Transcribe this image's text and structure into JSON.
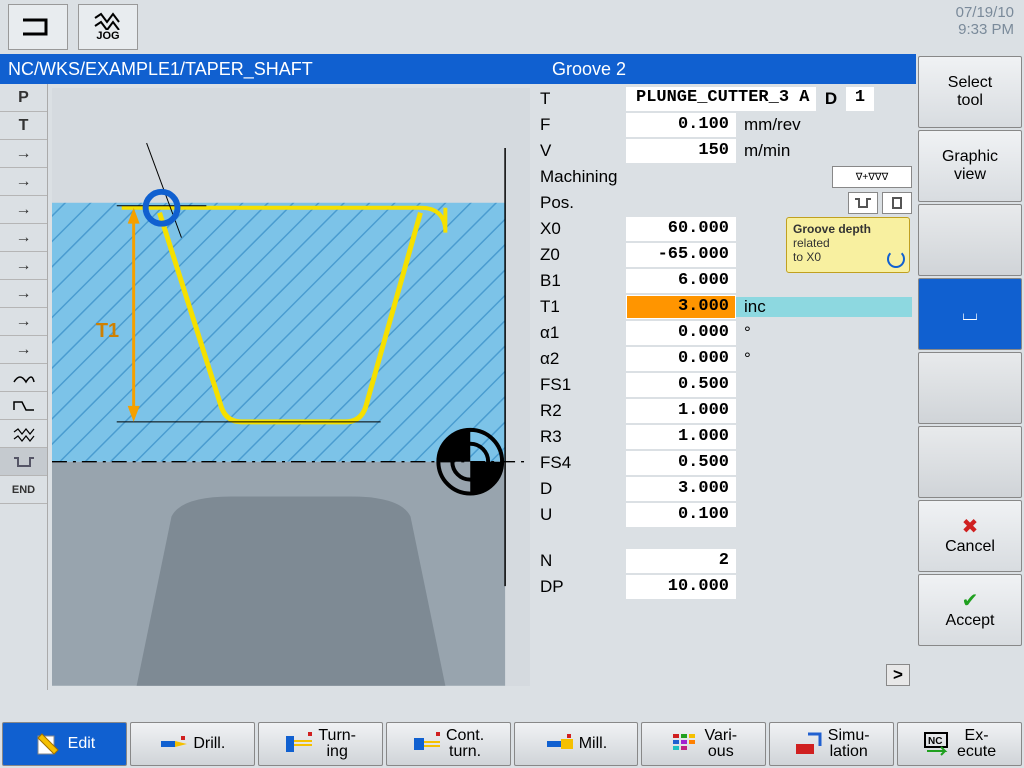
{
  "header": {
    "date": "07/19/10",
    "time": "9:33 PM",
    "jog_label": "JOG"
  },
  "path": {
    "program_path": "NC/WKS/EXAMPLE1/TAPER_SHAFT",
    "cycle_name": "Groove 2"
  },
  "left_rail": {
    "items": [
      "P",
      "T",
      "→",
      "→",
      "→",
      "→",
      "→",
      "→",
      "→",
      "→",
      "〰",
      "⌐",
      "≋",
      "⌙",
      "END"
    ]
  },
  "params": {
    "tool": {
      "label": "T",
      "value": "PLUNGE_CUTTER_3 A",
      "d_label": "D",
      "d_value": "1"
    },
    "feed": {
      "label": "F",
      "value": "0.100",
      "unit": "mm/rev"
    },
    "speed": {
      "label": "V",
      "value": "150",
      "unit": "m/min"
    },
    "machining": {
      "label": "Machining",
      "mode": "∇+∇∇∇"
    },
    "pos": {
      "label": "Pos."
    },
    "X0": {
      "label": "X0",
      "value": "60.000"
    },
    "Z0": {
      "label": "Z0",
      "value": "-65.000"
    },
    "B1": {
      "label": "B1",
      "value": "6.000"
    },
    "T1": {
      "label": "T1",
      "value": "3.000",
      "unit": "inc"
    },
    "a1": {
      "label": "α1",
      "value": "0.000",
      "unit": "°"
    },
    "a2": {
      "label": "α2",
      "value": "0.000",
      "unit": "°"
    },
    "FS1": {
      "label": "FS1",
      "value": "0.500"
    },
    "R2": {
      "label": "R2",
      "value": "1.000"
    },
    "R3": {
      "label": "R3",
      "value": "1.000"
    },
    "FS4": {
      "label": "FS4",
      "value": "0.500"
    },
    "D": {
      "label": "D",
      "value": "3.000"
    },
    "U": {
      "label": "U",
      "value": "0.100"
    },
    "N": {
      "label": "N",
      "value": "2"
    },
    "DP": {
      "label": "DP",
      "value": "10.000"
    }
  },
  "tooltip": {
    "line1": "Groove depth",
    "line2": "related",
    "line3": "to X0"
  },
  "right_keys": [
    {
      "label": "Select\ntool",
      "name": "select-tool"
    },
    {
      "label": "Graphic\nview",
      "name": "graphic-view"
    },
    {
      "label": "",
      "name": "empty-1",
      "empty": true
    },
    {
      "label": "",
      "name": "groove-type",
      "active": true,
      "icon": "⌴"
    },
    {
      "label": "",
      "name": "empty-2",
      "empty": true
    },
    {
      "label": "",
      "name": "empty-3",
      "empty": true
    },
    {
      "label": "Cancel",
      "name": "cancel",
      "icon": "✖",
      "icon_color": "#d02020"
    },
    {
      "label": "Accept",
      "name": "accept",
      "icon": "✔",
      "icon_color": "#20a020"
    }
  ],
  "bottom_keys": [
    {
      "label": "Edit",
      "name": "edit",
      "active": true
    },
    {
      "label": "Drill.",
      "name": "drill"
    },
    {
      "label": "Turn-\ning",
      "name": "turning"
    },
    {
      "label": "Cont.\nturn.",
      "name": "cont-turn"
    },
    {
      "label": "Mill.",
      "name": "mill"
    },
    {
      "label": "Vari-\nous",
      "name": "various"
    },
    {
      "label": "Simu-\nlation",
      "name": "simulation"
    },
    {
      "label": "Ex-\necute",
      "name": "execute"
    }
  ],
  "diagram": {
    "type": "groove-profile",
    "t1_label": "T1",
    "stock_color": "#7cc3e8",
    "hatch_color": "#4a9cd0",
    "groove_line_color": "#f5e000",
    "groove_line_width": 4,
    "marker_color": "#1060d0",
    "centerline_color": "#000000",
    "background_color": "#d5dadf",
    "label_color": "#d08000"
  }
}
